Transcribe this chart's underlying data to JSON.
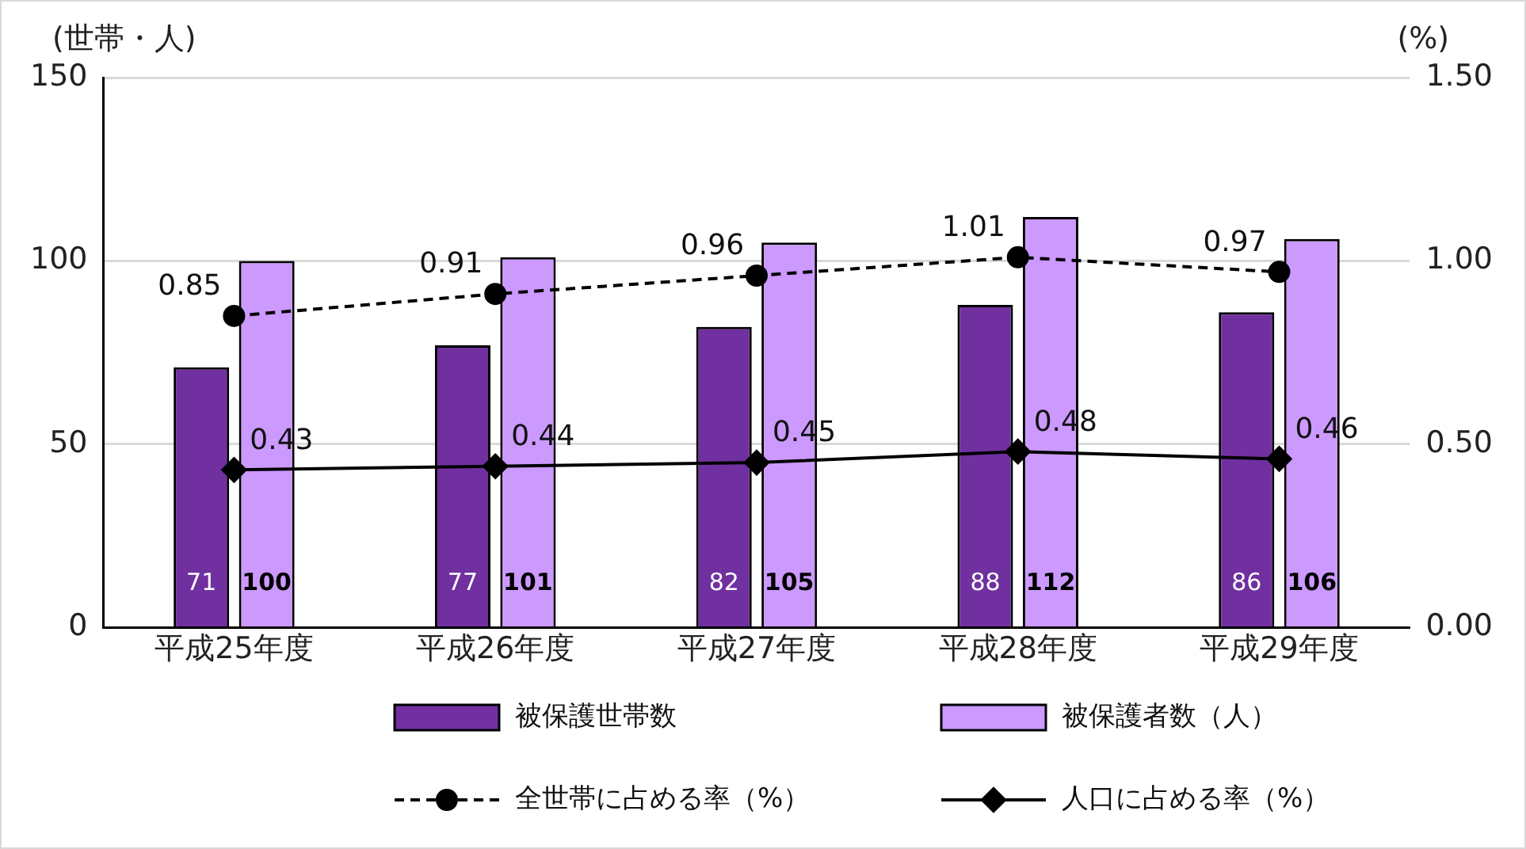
{
  "chart_data": {
    "type": "bar",
    "ylabel": "(世帯・人)",
    "y2label": "(%)",
    "categories": [
      "平成25年度",
      "平成26年度",
      "平成27年度",
      "平成28年度",
      "平成29年度"
    ],
    "series": [
      {
        "name": "被保護世帯数",
        "color": "#7030a0",
        "values": [
          71,
          77,
          82,
          88,
          86
        ]
      },
      {
        "name": "被保護者数（人）",
        "color": "#cc99ff",
        "values": [
          100,
          101,
          105,
          112,
          106
        ]
      },
      {
        "name": "全世帯に占める率（%）",
        "type": "line",
        "axis": "y2",
        "color": "#000000",
        "marker": "circle",
        "line_style": "dashed",
        "values": [
          0.85,
          0.91,
          0.96,
          1.01,
          0.97
        ]
      },
      {
        "name": "人口に占める率（%）",
        "type": "line",
        "axis": "y2",
        "color": "#000000",
        "marker": "diamond",
        "line_style": "solid",
        "values": [
          0.43,
          0.44,
          0.45,
          0.48,
          0.46
        ]
      }
    ],
    "ylim": [
      0,
      150
    ],
    "yticks": [
      0,
      50,
      100,
      150
    ],
    "y2lim": [
      0,
      1.5
    ],
    "y2ticks": [
      {
        "value": 0,
        "label": "0.00"
      },
      {
        "value": 0.5,
        "label": "0.50"
      },
      {
        "value": 1,
        "label": "1.00"
      },
      {
        "value": 1.5,
        "label": "1.50"
      }
    ],
    "grid": "y",
    "legend": "bottom",
    "data_labels": true
  }
}
